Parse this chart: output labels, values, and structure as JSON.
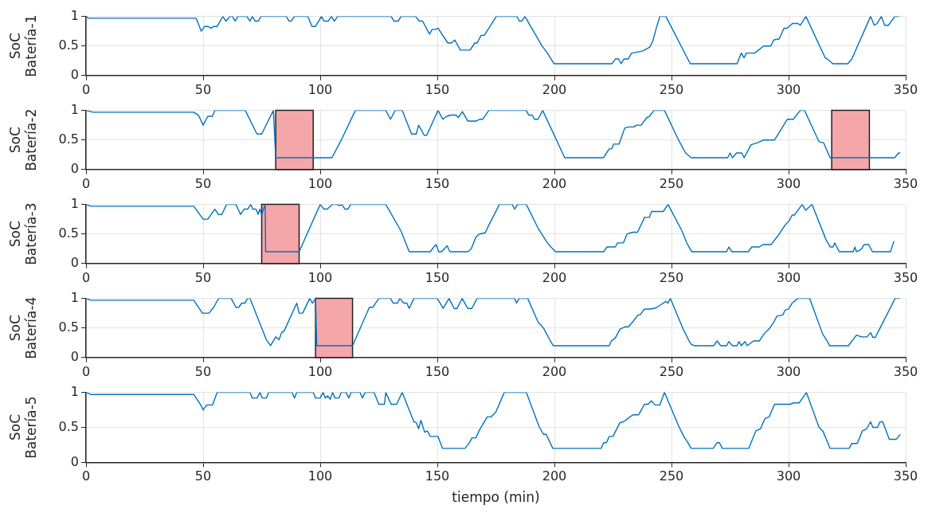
{
  "chart_data": [
    {
      "type": "line",
      "ylabel": "SoC Batería-1",
      "color": "#0072bd",
      "xlim": [
        0,
        350
      ],
      "xticks": [
        0,
        50,
        100,
        150,
        200,
        250,
        300,
        350
      ],
      "ylim": [
        0,
        1
      ],
      "yticks": [
        0,
        0.5,
        1
      ],
      "grid": true,
      "marker": "none",
      "line_style": "solid",
      "x": [
        0,
        1,
        47,
        49.2,
        50.6,
        52.2,
        53.3,
        54.5,
        56,
        58.4,
        59.8,
        61.4,
        62.5,
        63.7,
        64.8,
        68.7,
        70,
        71,
        72.2,
        73.6,
        74.7,
        85.5,
        86.7,
        87.6,
        89,
        94.7,
        96.5,
        98,
        100.5,
        101.6,
        103.4,
        104.8,
        106,
        107.4,
        130.3,
        131.5,
        133.3,
        134.5,
        140.7,
        142.3,
        143.7,
        146.7,
        147.8,
        149.2,
        150.3,
        154.5,
        156,
        157.5,
        159.8,
        164,
        166,
        167,
        168.7,
        170,
        171.7,
        175.2,
        184,
        185,
        186,
        187.4,
        194.7,
        197,
        199.8,
        224.6,
        226,
        227.4,
        228.5,
        229.7,
        231.5,
        233,
        236,
        238,
        240.7,
        242,
        243.5,
        245,
        247.6,
        258,
        278,
        279.8,
        281,
        282,
        285.5,
        289.4,
        292.4,
        293.6,
        296,
        298,
        299.3,
        301.6,
        304,
        305,
        307.4,
        315.6,
        316.5,
        318.9,
        325.3,
        327,
        335,
        336.6,
        337.8,
        339.6,
        341,
        342.6,
        345.4,
        347.2
      ],
      "values": [
        1,
        0.97,
        0.97,
        0.75,
        0.83,
        0.83,
        0.8,
        0.83,
        0.83,
        1,
        0.92,
        1,
        1,
        0.92,
        1,
        1,
        0.92,
        1,
        0.92,
        0.92,
        1,
        1,
        0.92,
        0.92,
        1,
        1,
        0.83,
        0.83,
        1,
        0.92,
        0.92,
        1,
        0.92,
        1,
        1,
        0.92,
        0.92,
        1,
        1,
        0.92,
        0.92,
        0.7,
        0.78,
        0.78,
        0.8,
        0.55,
        0.55,
        0.6,
        0.43,
        0.43,
        0.55,
        0.55,
        0.68,
        0.68,
        0.78,
        1,
        1,
        0.92,
        0.92,
        1,
        0.5,
        0.38,
        0.2,
        0.2,
        0.28,
        0.28,
        0.2,
        0.28,
        0.28,
        0.38,
        0.4,
        0.42,
        0.48,
        0.58,
        0.8,
        1,
        1,
        0.2,
        0.2,
        0.38,
        0.3,
        0.38,
        0.38,
        0.5,
        0.5,
        0.6,
        0.62,
        0.8,
        0.8,
        0.88,
        0.88,
        0.85,
        1,
        0.3,
        0.28,
        0.2,
        0.2,
        0.28,
        1,
        0.85,
        0.88,
        1,
        0.85,
        0.85,
        1,
        1
      ]
    },
    {
      "type": "line",
      "ylabel": "SoC Batería-2",
      "color": "#0072bd",
      "xlim": [
        0,
        350
      ],
      "xticks": [
        0,
        50,
        100,
        150,
        200,
        250,
        300,
        350
      ],
      "ylim": [
        0,
        1
      ],
      "yticks": [
        0,
        0.5,
        1
      ],
      "grid": true,
      "marker": "none",
      "line_style": "solid",
      "bands": [
        {
          "axis": "x",
          "from": 81,
          "to": 97,
          "color": "#f4a6a8"
        },
        {
          "axis": "x",
          "from": 318.4,
          "to": 334.5,
          "color": "#f4a6a8"
        }
      ],
      "x": [
        0,
        3,
        46,
        48,
        50,
        52,
        54,
        55,
        68,
        73,
        75,
        80,
        81,
        105,
        109,
        115,
        128,
        130,
        132,
        135,
        139,
        141,
        142,
        144.4,
        145.5,
        150.3,
        152.4,
        154,
        155.6,
        158,
        159,
        160.7,
        163,
        166.7,
        168,
        169.4,
        170.6,
        172,
        188,
        189,
        190.6,
        191.5,
        193,
        195,
        204.4,
        221,
        223.4,
        224.5,
        225.3,
        227.6,
        230,
        231.6,
        234,
        235,
        237,
        239.5,
        240.6,
        242.5,
        247,
        253,
        256,
        258.4,
        274,
        275,
        276,
        277.8,
        280,
        281,
        284,
        286.6,
        289.4,
        294,
        296.8,
        299.5,
        302,
        305,
        306.8,
        313,
        315,
        317.7,
        345.3,
        347,
        347.7
      ],
      "values": [
        1,
        0.97,
        0.97,
        0.92,
        0.75,
        0.9,
        0.9,
        1,
        1,
        0.6,
        0.6,
        1,
        0.2,
        0.2,
        0.5,
        1,
        1,
        0.85,
        1,
        1,
        0.6,
        0.6,
        0.75,
        0.58,
        0.58,
        1,
        0.85,
        0.9,
        0.92,
        0.92,
        0.88,
        0.98,
        0.82,
        0.82,
        0.85,
        0.85,
        0.92,
        1,
        1,
        0.92,
        0.92,
        0.85,
        0.85,
        1,
        0.2,
        0.2,
        0.35,
        0.35,
        0.43,
        0.43,
        0.7,
        0.72,
        0.72,
        0.75,
        0.75,
        0.88,
        0.9,
        1,
        1,
        0.5,
        0.28,
        0.2,
        0.2,
        0.28,
        0.2,
        0.28,
        0.28,
        0.2,
        0.42,
        0.45,
        0.5,
        0.5,
        0.68,
        0.85,
        0.85,
        1,
        1,
        0.47,
        0.45,
        0.2,
        0.2,
        0.28,
        0.28
      ]
    },
    {
      "type": "line",
      "ylabel": "SoC Batería-3",
      "color": "#0072bd",
      "xlim": [
        0,
        350
      ],
      "xticks": [
        0,
        50,
        100,
        150,
        200,
        250,
        300,
        350
      ],
      "ylim": [
        0,
        1
      ],
      "yticks": [
        0,
        0.5,
        1
      ],
      "grid": true,
      "marker": "none",
      "line_style": "solid",
      "bands": [
        {
          "axis": "x",
          "from": 75,
          "to": 91,
          "color": "#f4a6a8"
        }
      ],
      "x": [
        0,
        2,
        46,
        50,
        52,
        55,
        56.5,
        58,
        60,
        64,
        66,
        67.5,
        69,
        70.3,
        71.2,
        72.6,
        73.5,
        74.2,
        75,
        76.5,
        76.7,
        91,
        100,
        101.6,
        103,
        105.2,
        107,
        108.2,
        109.2,
        110.6,
        111.8,
        113,
        128,
        134.5,
        138,
        147,
        148.5,
        149.5,
        150.6,
        151.8,
        154.2,
        155.4,
        163,
        164.5,
        166.5,
        168,
        170.5,
        172,
        176.5,
        182,
        183,
        184.3,
        188,
        193,
        197,
        198.5,
        200.5,
        221,
        222.5,
        226,
        227,
        229.5,
        231,
        233.5,
        235.5,
        238.5,
        240.5,
        241.5,
        246.5,
        248.5,
        254.5,
        256.5,
        258.6,
        273.5,
        274.5,
        275.7,
        282.8,
        284.3,
        287.6,
        289,
        292.5,
        296,
        298.5,
        300.2,
        301.5,
        302.5,
        305.8,
        307.3,
        310,
        316,
        317.8,
        319,
        319.7,
        321.6,
        327.6,
        328.3,
        329,
        330.2,
        331.2,
        332.2,
        334.2,
        335.8,
        343.5,
        345
      ],
      "values": [
        1,
        0.97,
        0.97,
        0.75,
        0.75,
        0.92,
        0.83,
        0.83,
        1,
        1,
        0.83,
        0.92,
        0.92,
        1,
        0.92,
        0.92,
        0.83,
        0.92,
        0.83,
        1,
        0.2,
        0.2,
        1,
        0.92,
        0.92,
        1,
        1,
        0.98,
        1,
        0.92,
        0.92,
        1,
        1,
        0.55,
        0.2,
        0.2,
        0.28,
        0.32,
        0.2,
        0.2,
        0.3,
        0.2,
        0.2,
        0.25,
        0.45,
        0.5,
        0.52,
        0.65,
        1,
        1,
        0.92,
        1,
        1,
        0.6,
        0.35,
        0.28,
        0.2,
        0.2,
        0.28,
        0.28,
        0.35,
        0.35,
        0.5,
        0.53,
        0.53,
        0.78,
        0.78,
        0.88,
        0.88,
        1,
        0.55,
        0.35,
        0.2,
        0.2,
        0.28,
        0.2,
        0.2,
        0.28,
        0.28,
        0.32,
        0.32,
        0.5,
        0.65,
        0.72,
        0.82,
        0.82,
        1,
        0.9,
        1,
        0.4,
        0.28,
        0.28,
        0.35,
        0.2,
        0.2,
        0.28,
        0.2,
        0.22,
        0.25,
        0.32,
        0.32,
        0.2,
        0.2,
        0.38
      ]
    },
    {
      "type": "line",
      "ylabel": "SoC Batería-4",
      "color": "#0072bd",
      "xlim": [
        0,
        350
      ],
      "xticks": [
        0,
        50,
        100,
        150,
        200,
        250,
        300,
        350
      ],
      "ylim": [
        0,
        1
      ],
      "yticks": [
        0,
        0.5,
        1
      ],
      "grid": true,
      "marker": "none",
      "line_style": "solid",
      "bands": [
        {
          "axis": "x",
          "from": 98,
          "to": 113.8,
          "color": "#f4a6a8"
        }
      ],
      "x": [
        0,
        2,
        46,
        49.7,
        52.5,
        54.5,
        56.6,
        62,
        64,
        65.2,
        66.5,
        67.8,
        69,
        70,
        77,
        78.8,
        81,
        82.4,
        83.5,
        84.6,
        90,
        91,
        92.5,
        95.5,
        96.7,
        98,
        98.5,
        113.8,
        121,
        122.5,
        125,
        130,
        131.2,
        133,
        134,
        135.7,
        137,
        138,
        140,
        150,
        152.5,
        155,
        157.2,
        158.4,
        160.6,
        163,
        164.7,
        167,
        183,
        183.8,
        185,
        188.6,
        193,
        195.3,
        198,
        199.5,
        223.4,
        224.3,
        226,
        228,
        230.4,
        231.6,
        233,
        235.7,
        236.5,
        238.5,
        241,
        243.4,
        245.7,
        247.6,
        248.5,
        249.5,
        255,
        257.5,
        258.5,
        259.7,
        268,
        269.5,
        271,
        273.5,
        274.5,
        276,
        278,
        278.8,
        279.8,
        281.4,
        282.3,
        285,
        287.5,
        289.5,
        292,
        294,
        295,
        297.5,
        298.5,
        300,
        301.5,
        304,
        309,
        314.5,
        316.5,
        317.5,
        325.5,
        327.5,
        329,
        331,
        333.5,
        335,
        336,
        337,
        345.5,
        347.5
      ],
      "values": [
        1,
        0.97,
        0.97,
        0.75,
        0.75,
        0.85,
        1,
        1,
        0.85,
        0.85,
        0.92,
        0.92,
        1,
        1,
        0.3,
        0.2,
        0.35,
        0.3,
        0.42,
        0.45,
        0.92,
        0.75,
        0.75,
        1,
        0.92,
        1,
        0.2,
        0.2,
        0.85,
        0.85,
        1,
        1,
        0.92,
        0.92,
        1,
        0.92,
        0.92,
        0.83,
        1,
        1,
        0.83,
        1,
        0.83,
        0.83,
        1,
        0.83,
        0.83,
        1,
        1,
        0.92,
        1,
        1,
        0.6,
        0.5,
        0.3,
        0.2,
        0.2,
        0.28,
        0.33,
        0.48,
        0.52,
        0.52,
        0.58,
        0.72,
        0.72,
        0.82,
        0.82,
        0.84,
        0.9,
        0.95,
        0.92,
        1,
        0.48,
        0.28,
        0.22,
        0.2,
        0.2,
        0.28,
        0.2,
        0.2,
        0.27,
        0.2,
        0.2,
        0.27,
        0.2,
        0.27,
        0.2,
        0.28,
        0.28,
        0.4,
        0.5,
        0.62,
        0.7,
        0.72,
        0.8,
        0.82,
        0.92,
        1,
        1,
        0.4,
        0.28,
        0.2,
        0.2,
        0.3,
        0.38,
        0.35,
        0.35,
        0.42,
        0.34,
        0.34,
        1,
        1
      ]
    },
    {
      "type": "line",
      "ylabel": "SoC Batería-5",
      "xlabel": "tiempo (min)",
      "color": "#0072bd",
      "xlim": [
        0,
        350
      ],
      "xticks": [
        0,
        50,
        100,
        150,
        200,
        250,
        300,
        350
      ],
      "ylim": [
        0,
        1
      ],
      "yticks": [
        0,
        0.5,
        1
      ],
      "grid": true,
      "marker": "none",
      "line_style": "solid",
      "x": [
        0,
        2,
        46,
        49,
        50,
        51.5,
        54,
        56,
        70,
        71,
        73,
        74.3,
        75.2,
        77,
        78,
        88,
        89,
        90,
        97,
        98,
        100,
        101.2,
        102.2,
        103.2,
        104.3,
        105.3,
        106.3,
        108,
        109,
        111,
        112.2,
        113.2,
        117,
        118,
        119.2,
        123,
        125,
        127.4,
        128,
        130.3,
        132.6,
        135,
        140,
        141,
        142,
        143,
        144.6,
        145.7,
        147,
        150.3,
        152.2,
        161.8,
        163.7,
        164.8,
        166.5,
        167.8,
        171.3,
        173,
        175,
        178.6,
        188,
        193.6,
        195.4,
        196.5,
        199.3,
        220,
        221,
        222.2,
        223.4,
        225,
        228,
        229.5,
        231.5,
        233.5,
        236,
        238.4,
        240,
        241.4,
        243,
        245,
        247,
        253.3,
        255.6,
        256.7,
        258.4,
        267.8,
        269.4,
        270.5,
        271.7,
        283,
        286,
        288,
        290,
        291.7,
        294,
        300.5,
        302.3,
        304.5,
        306,
        307.6,
        313,
        314.6,
        317.7,
        325.8,
        327,
        329.3,
        331.5,
        333.3,
        335,
        336,
        338,
        339,
        340.2,
        343,
        346,
        347.7
      ],
      "values": [
        1,
        0.97,
        0.97,
        0.82,
        0.75,
        0.82,
        0.82,
        1,
        1,
        0.92,
        0.92,
        1,
        0.92,
        0.92,
        1,
        1,
        0.92,
        1,
        1,
        0.92,
        0.92,
        1,
        0.92,
        0.95,
        0.9,
        1,
        0.92,
        0.92,
        1,
        1,
        0.92,
        1,
        1,
        0.92,
        1,
        1,
        0.83,
        0.83,
        1,
        0.83,
        0.83,
        1,
        0.58,
        0.57,
        0.48,
        0.6,
        0.43,
        0.45,
        0.37,
        0.37,
        0.2,
        0.2,
        0.28,
        0.35,
        0.35,
        0.45,
        0.65,
        0.65,
        0.72,
        1,
        1,
        0.5,
        0.4,
        0.4,
        0.2,
        0.2,
        0.28,
        0.28,
        0.37,
        0.37,
        0.57,
        0.58,
        0.63,
        0.68,
        0.68,
        0.83,
        0.83,
        0.88,
        0.82,
        0.82,
        1,
        0.5,
        0.35,
        0.3,
        0.2,
        0.2,
        0.28,
        0.28,
        0.2,
        0.2,
        0.45,
        0.48,
        0.63,
        0.65,
        0.83,
        0.83,
        0.85,
        0.85,
        0.92,
        1,
        0.5,
        0.45,
        0.2,
        0.2,
        0.27,
        0.27,
        0.45,
        0.48,
        0.58,
        0.5,
        0.5,
        0.58,
        0.58,
        0.33,
        0.33,
        0.4
      ]
    }
  ]
}
